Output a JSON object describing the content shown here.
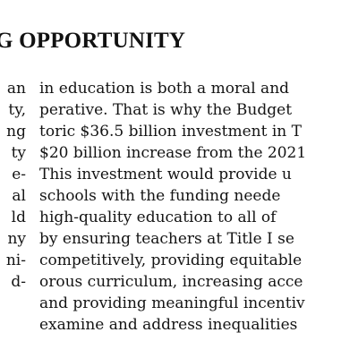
{
  "heading": "G OPPORTUNITY",
  "left_column": [
    "an",
    "ty,",
    "ng",
    "ty",
    "e-",
    "al",
    "ld",
    "ny",
    "ni-",
    "d-"
  ],
  "right_column": [
    "in education is both a moral and",
    "perative. That is why the Budget",
    "toric $36.5 billion investment in T",
    "$20 billion increase from the 2021",
    "This investment would provide u",
    "schools with the funding neede",
    "high-quality education to all of",
    "by ensuring teachers at Title I se",
    "competitively, providing equitable",
    "orous curriculum, increasing acce",
    "and providing meaningful incentiv",
    "examine and address inequalities"
  ]
}
